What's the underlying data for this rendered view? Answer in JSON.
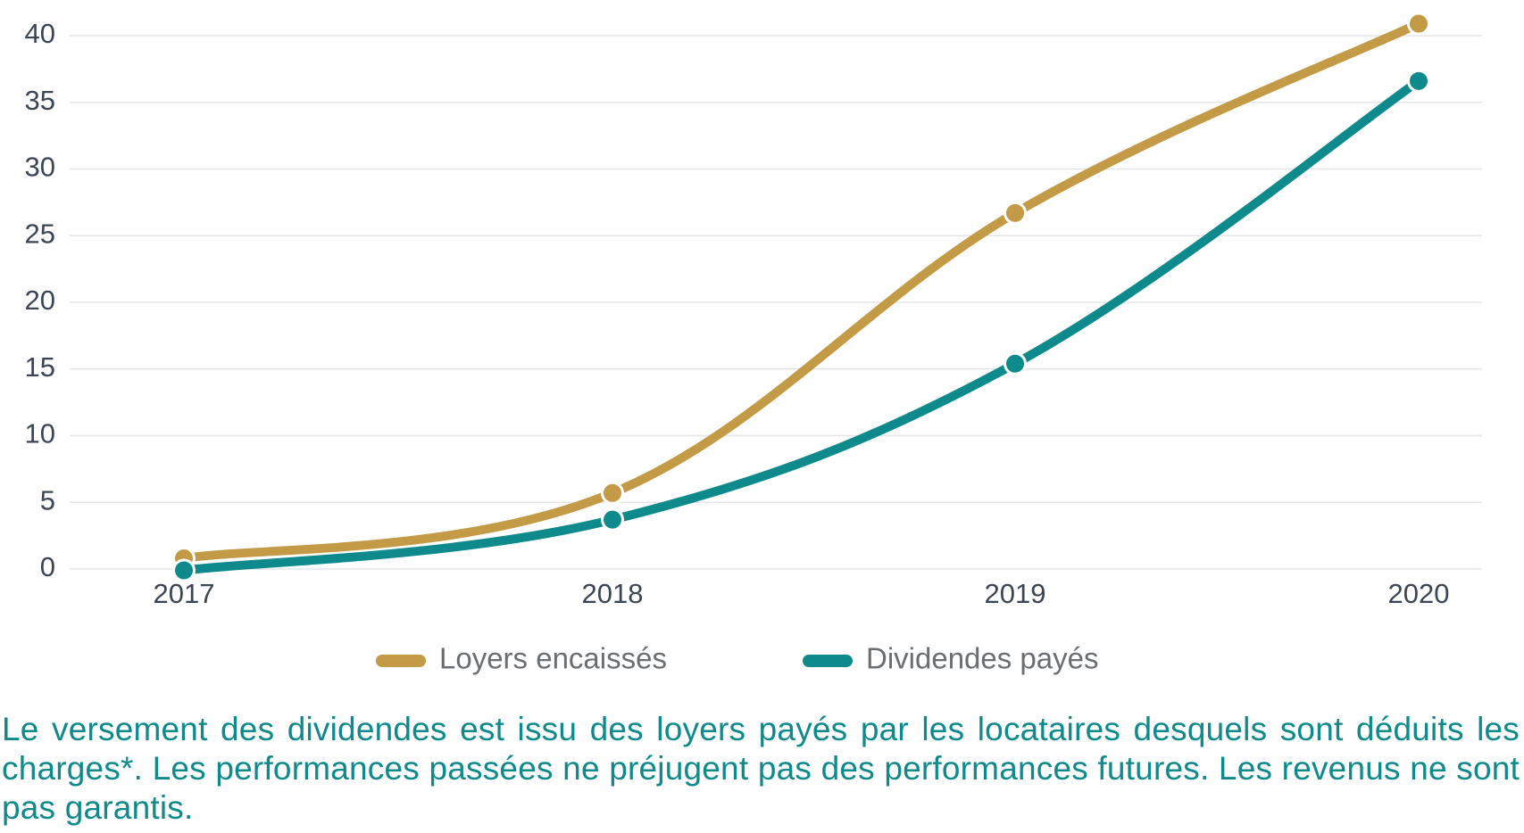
{
  "chart_data": {
    "type": "line",
    "categories": [
      "2017",
      "2018",
      "2019",
      "2020"
    ],
    "y_ticks": [
      "0",
      "5",
      "10",
      "15",
      "20",
      "25",
      "30",
      "35",
      "40"
    ],
    "ylim": [
      0,
      40
    ],
    "grid": true,
    "legend_position": "bottom",
    "series": [
      {
        "name": "Loyers encaissés",
        "values": [
          0.8,
          5.7,
          26.7,
          40.9
        ],
        "color": "#c39a45"
      },
      {
        "name": "Dividendes payés",
        "values": [
          -0.1,
          3.7,
          15.4,
          36.6
        ],
        "color": "#0f8a8c"
      }
    ]
  },
  "footnote": "Le versement des dividendes est issu des loyers payés par les locataires desquels sont déduits les charges*. Les performances passées ne préjugent pas des performances futures. Les revenus ne sont pas garantis."
}
